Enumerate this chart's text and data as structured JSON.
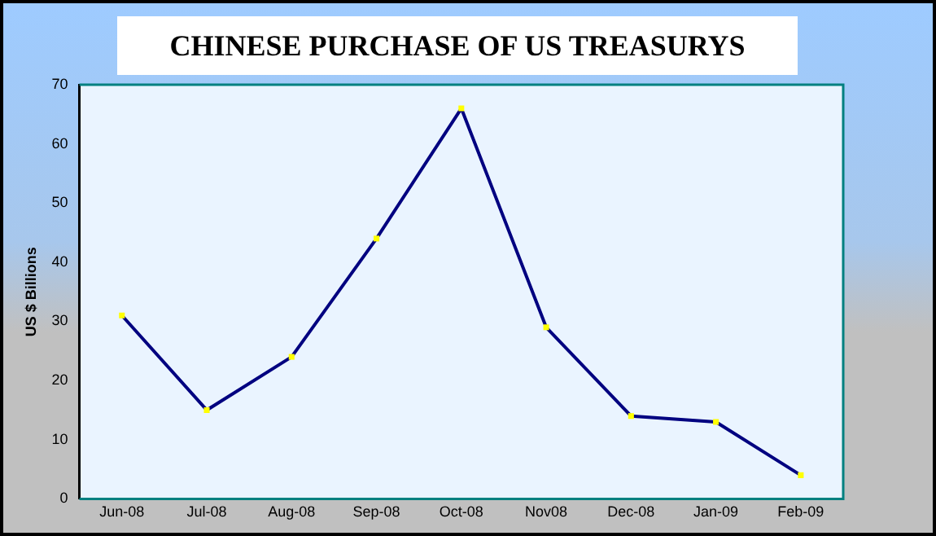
{
  "chart_data": {
    "type": "line",
    "title": "CHINESE PURCHASE OF US TREASURYS",
    "ylabel": "US $ Billions",
    "categories": [
      "Jun-08",
      "Jul-08",
      "Aug-08",
      "Sep-08",
      "Oct-08",
      "Nov08",
      "Dec-08",
      "Jan-09",
      "Feb-09"
    ],
    "series": [
      {
        "color": "#000080",
        "colors": [
          "#ffff00",
          "#ffff00",
          "#ffff00",
          "#ffff00",
          "#ffff00",
          "#ffff00",
          "#ffff00",
          "#ffff00",
          "#ffff00"
        ],
        "values": [
          31,
          15,
          24,
          44,
          66,
          29,
          14,
          13,
          4
        ]
      }
    ],
    "ylim": [
      0,
      70
    ],
    "yticks": [
      0,
      10,
      20,
      30,
      40,
      50,
      60,
      70
    ],
    "grid": false,
    "legend": false,
    "marker": "square",
    "line_style": "solid"
  }
}
